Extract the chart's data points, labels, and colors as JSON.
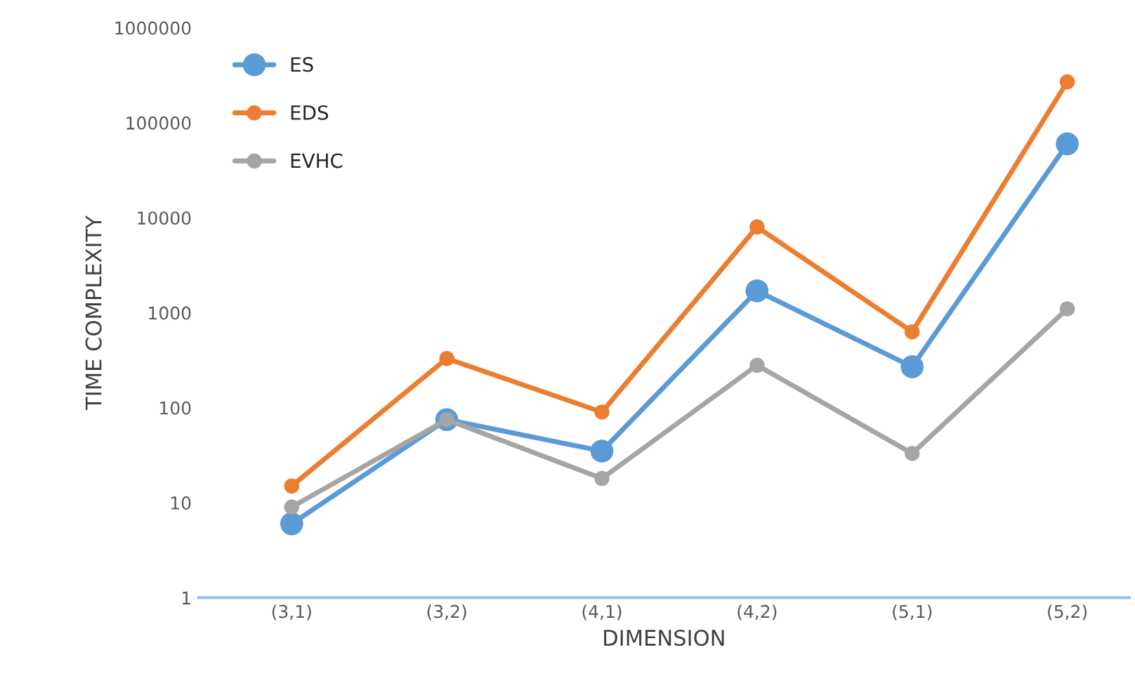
{
  "chart_data": {
    "type": "line",
    "xlabel": "DIMENSION",
    "ylabel": "TIME COMPLEXITY",
    "categories": [
      "(3,1)",
      "(3,2)",
      "(4,1)",
      "(4,2)",
      "(5,1)",
      "(5,2)"
    ],
    "series": [
      {
        "name": "ES",
        "color": "#5b9bd5",
        "values": [
          6,
          75,
          35,
          1700,
          270,
          60000
        ]
      },
      {
        "name": "EDS",
        "color": "#ed7d31",
        "values": [
          15,
          330,
          90,
          8000,
          630,
          270000
        ]
      },
      {
        "name": "EVHC",
        "color": "#a5a5a5",
        "values": [
          9,
          75,
          18,
          280,
          33,
          1100
        ]
      }
    ],
    "log": "y",
    "ylim": [
      1,
      1000000
    ],
    "yticks": [
      1,
      10,
      100,
      1000,
      10000,
      100000,
      1000000
    ],
    "grid": false,
    "legend": "top left",
    "marker": "circle",
    "line_style": "solid"
  }
}
